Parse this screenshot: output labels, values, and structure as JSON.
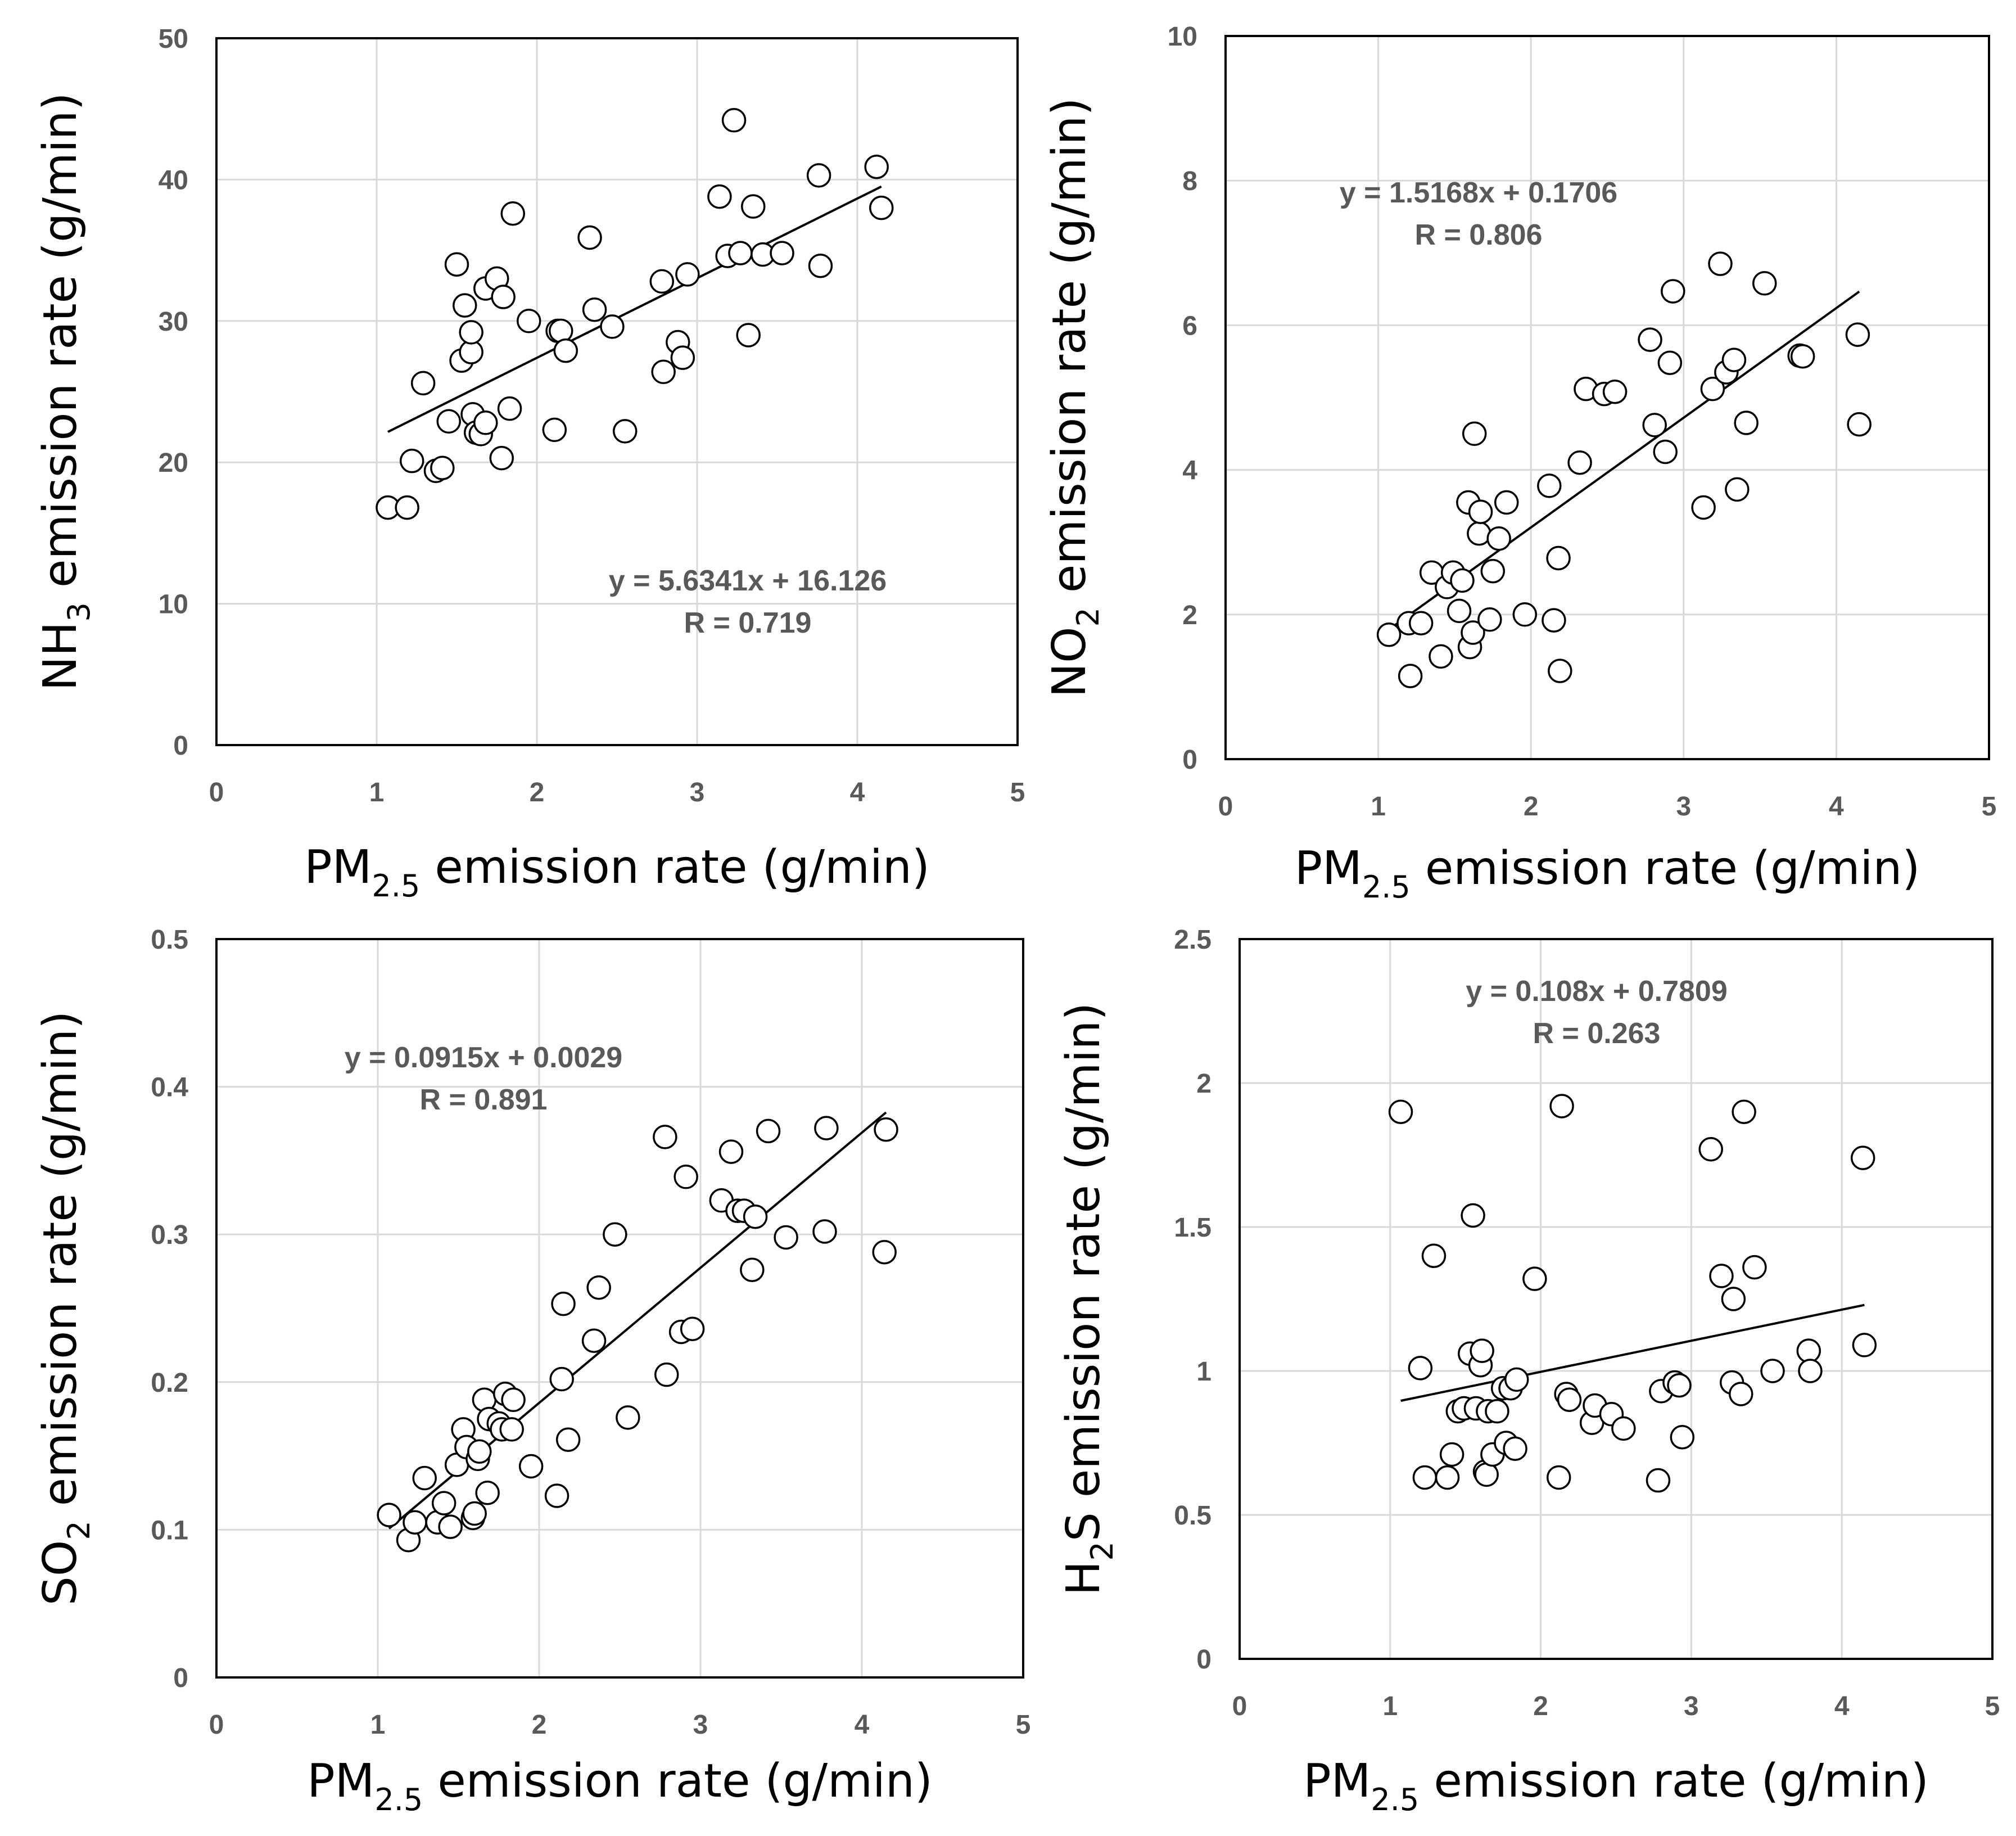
{
  "chart_data": [
    {
      "type": "scatter",
      "panel": "top-left",
      "xlabel": {
        "main": "PM",
        "sub": "2.5",
        "rest": " emission rate (g/min)"
      },
      "ylabel": {
        "main": "NH",
        "sub": "3",
        "rest": " emission rate (g/min)"
      },
      "xlim": [
        0,
        5
      ],
      "ylim": [
        0,
        50
      ],
      "xticks": [
        "0",
        "1",
        "2",
        "3",
        "4",
        "5"
      ],
      "yticks": [
        "0",
        "10",
        "20",
        "30",
        "40",
        "50"
      ],
      "grid": true,
      "equation": "y = 5.6341x + 16.126",
      "r_label": "R = 0.719",
      "trendline": {
        "slope": 5.6341,
        "intercept": 16.126,
        "x_range": [
          1.07,
          4.15
        ]
      },
      "x": [
        1.07,
        1.19,
        1.22,
        1.29,
        1.37,
        1.41,
        1.45,
        1.5,
        1.53,
        1.55,
        1.59,
        1.59,
        1.6,
        1.62,
        1.65,
        1.68,
        1.68,
        1.75,
        1.78,
        1.79,
        1.83,
        1.85,
        1.95,
        2.11,
        2.13,
        2.15,
        2.18,
        2.33,
        2.36,
        2.47,
        2.55,
        2.78,
        2.79,
        2.88,
        2.91,
        2.94,
        3.14,
        3.19,
        3.23,
        3.27,
        3.32,
        3.35,
        3.41,
        3.53,
        3.76,
        3.77,
        4.12,
        4.15
      ],
      "y": [
        16.8,
        16.8,
        20.1,
        25.6,
        19.4,
        19.6,
        22.9,
        34.0,
        27.2,
        31.1,
        27.8,
        29.2,
        23.4,
        22.1,
        22.0,
        22.8,
        32.3,
        33.0,
        20.3,
        31.7,
        23.8,
        37.6,
        30.0,
        22.3,
        29.3,
        29.3,
        27.9,
        35.9,
        30.8,
        29.6,
        22.2,
        32.8,
        26.4,
        28.5,
        27.4,
        33.3,
        38.8,
        34.6,
        44.2,
        34.8,
        29.0,
        38.1,
        34.7,
        34.8,
        40.3,
        33.9,
        40.9,
        38.0
      ]
    },
    {
      "type": "scatter",
      "panel": "top-right",
      "xlabel": {
        "main": "PM",
        "sub": "2.5",
        "rest": " emission rate (g/min)"
      },
      "ylabel": {
        "main": "NO",
        "sub": "2",
        "rest": " emission rate (g/min)"
      },
      "xlim": [
        0,
        5
      ],
      "ylim": [
        0,
        10
      ],
      "xticks": [
        "0",
        "1",
        "2",
        "3",
        "4",
        "5"
      ],
      "yticks": [
        "0",
        "2",
        "4",
        "6",
        "8",
        "10"
      ],
      "grid": true,
      "equation": "y = 1.5168x + 0.1706",
      "r_label": "R = 0.806",
      "trendline": {
        "slope": 1.5168,
        "intercept": 0.1706,
        "x_range": [
          1.07,
          4.15
        ]
      },
      "x": [
        1.07,
        1.2,
        1.21,
        1.28,
        1.35,
        1.41,
        1.45,
        1.49,
        1.53,
        1.55,
        1.59,
        1.6,
        1.62,
        1.63,
        1.66,
        1.67,
        1.73,
        1.75,
        1.79,
        1.84,
        1.96,
        2.12,
        2.15,
        2.18,
        2.19,
        2.32,
        2.36,
        2.48,
        2.55,
        2.78,
        2.81,
        2.88,
        2.91,
        2.93,
        3.13,
        3.19,
        3.24,
        3.28,
        3.33,
        3.35,
        3.41,
        3.53,
        3.76,
        3.78,
        4.14,
        4.15
      ],
      "y": [
        1.72,
        1.88,
        1.15,
        1.88,
        2.58,
        1.42,
        2.38,
        2.58,
        2.05,
        2.47,
        3.55,
        1.55,
        1.75,
        4.5,
        3.12,
        3.42,
        1.93,
        2.6,
        3.05,
        3.55,
        2.0,
        3.78,
        1.92,
        2.78,
        1.22,
        4.1,
        5.12,
        5.05,
        5.08,
        5.8,
        4.62,
        4.25,
        5.48,
        6.47,
        3.48,
        5.12,
        6.85,
        5.35,
        5.52,
        3.73,
        4.65,
        6.58,
        5.58,
        5.57,
        5.87,
        4.63
      ]
    },
    {
      "type": "scatter",
      "panel": "bottom-left",
      "xlabel": {
        "main": "PM",
        "sub": "2.5",
        "rest": " emission rate (g/min)"
      },
      "ylabel": {
        "main": "SO",
        "sub": "2",
        "rest": " emission rate (g/min)"
      },
      "xlim": [
        0,
        5
      ],
      "ylim": [
        0,
        0.5
      ],
      "xticks": [
        "0",
        "1",
        "2",
        "3",
        "4",
        "5"
      ],
      "yticks": [
        "0",
        "0.1",
        "0.2",
        "0.3",
        "0.4",
        "0.5"
      ],
      "grid": true,
      "equation": "y = 0.0915x + 0.0029",
      "r_label": "R = 0.891",
      "trendline": {
        "slope": 0.0915,
        "intercept": 0.0029,
        "x_range": [
          1.07,
          4.15
        ]
      },
      "x": [
        1.07,
        1.19,
        1.23,
        1.29,
        1.37,
        1.41,
        1.45,
        1.49,
        1.53,
        1.55,
        1.59,
        1.6,
        1.62,
        1.63,
        1.66,
        1.68,
        1.69,
        1.75,
        1.77,
        1.79,
        1.83,
        1.84,
        1.95,
        2.11,
        2.14,
        2.15,
        2.18,
        2.34,
        2.37,
        2.47,
        2.55,
        2.78,
        2.79,
        2.88,
        2.91,
        2.95,
        3.13,
        3.19,
        3.23,
        3.27,
        3.32,
        3.34,
        3.42,
        3.53,
        3.77,
        3.78,
        4.14,
        4.15
      ],
      "y": [
        0.11,
        0.093,
        0.105,
        0.135,
        0.105,
        0.118,
        0.102,
        0.144,
        0.168,
        0.156,
        0.108,
        0.111,
        0.148,
        0.153,
        0.188,
        0.125,
        0.175,
        0.172,
        0.168,
        0.192,
        0.168,
        0.188,
        0.143,
        0.123,
        0.202,
        0.253,
        0.161,
        0.228,
        0.264,
        0.3,
        0.176,
        0.366,
        0.205,
        0.234,
        0.339,
        0.236,
        0.323,
        0.356,
        0.316,
        0.316,
        0.276,
        0.312,
        0.37,
        0.298,
        0.302,
        0.372,
        0.288,
        0.371
      ]
    },
    {
      "type": "scatter",
      "panel": "bottom-right",
      "xlabel": {
        "main": "PM",
        "sub": "2.5",
        "rest": " emission rate (g/min)"
      },
      "ylabel": {
        "main": "H",
        "sub": "2",
        "rest": "S emission rate (g/min)"
      },
      "xlim": [
        0,
        5
      ],
      "ylim": [
        0,
        2.5
      ],
      "xticks": [
        "0",
        "1",
        "2",
        "3",
        "4",
        "5"
      ],
      "yticks": [
        "0",
        "0.5",
        "1",
        "1.5",
        "2",
        "2.5"
      ],
      "grid": true,
      "equation": "y = 0.108x + 0.7809",
      "r_label": "R = 0.263",
      "trendline": {
        "slope": 0.108,
        "intercept": 0.7809,
        "x_range": [
          1.07,
          4.15
        ]
      },
      "x": [
        1.07,
        1.2,
        1.23,
        1.29,
        1.38,
        1.41,
        1.45,
        1.49,
        1.53,
        1.55,
        1.57,
        1.6,
        1.61,
        1.63,
        1.64,
        1.65,
        1.68,
        1.71,
        1.75,
        1.77,
        1.8,
        1.83,
        1.84,
        1.96,
        2.12,
        2.14,
        2.17,
        2.19,
        2.34,
        2.36,
        2.47,
        2.55,
        2.78,
        2.8,
        2.89,
        2.92,
        2.94,
        3.13,
        3.2,
        3.27,
        3.28,
        3.33,
        3.35,
        3.42,
        3.54,
        3.78,
        3.79,
        4.14,
        4.15
      ],
      "y": [
        1.9,
        1.01,
        0.63,
        1.4,
        0.63,
        0.71,
        0.86,
        0.87,
        1.06,
        1.54,
        0.87,
        1.02,
        1.07,
        0.65,
        0.64,
        0.86,
        0.71,
        0.86,
        0.94,
        0.75,
        0.94,
        0.73,
        0.97,
        1.32,
        0.63,
        1.92,
        0.92,
        0.9,
        0.82,
        0.88,
        0.85,
        0.8,
        0.62,
        0.93,
        0.96,
        0.95,
        0.77,
        1.77,
        1.33,
        0.96,
        1.25,
        0.92,
        1.9,
        1.36,
        1.0,
        1.07,
        1.0,
        1.74,
        1.09
      ]
    }
  ]
}
